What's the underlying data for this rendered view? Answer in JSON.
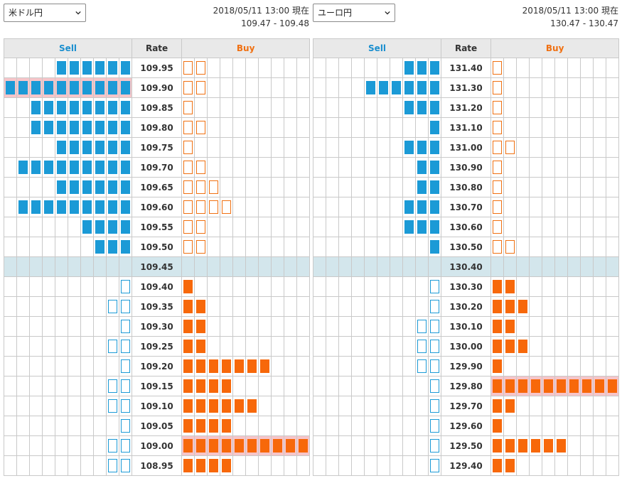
{
  "panels": [
    {
      "pair": "米ドル円",
      "timestamp": "2018/05/11 13:00 現在",
      "quote": "109.47 - 109.48",
      "headers": {
        "sell": "Sell",
        "rate": "Rate",
        "buy": "Buy"
      },
      "current_rate": "109.45",
      "rows": [
        {
          "rate": "109.95",
          "sell": 6,
          "sell_type": "filled",
          "buy": 2,
          "buy_type": "outline"
        },
        {
          "rate": "109.90",
          "sell": 10,
          "sell_type": "filled",
          "buy": 2,
          "buy_type": "outline",
          "highlight": "sell"
        },
        {
          "rate": "109.85",
          "sell": 8,
          "sell_type": "filled",
          "buy": 1,
          "buy_type": "outline"
        },
        {
          "rate": "109.80",
          "sell": 8,
          "sell_type": "filled",
          "buy": 2,
          "buy_type": "outline"
        },
        {
          "rate": "109.75",
          "sell": 6,
          "sell_type": "filled",
          "buy": 1,
          "buy_type": "outline"
        },
        {
          "rate": "109.70",
          "sell": 9,
          "sell_type": "filled",
          "buy": 2,
          "buy_type": "outline"
        },
        {
          "rate": "109.65",
          "sell": 6,
          "sell_type": "filled",
          "buy": 3,
          "buy_type": "outline"
        },
        {
          "rate": "109.60",
          "sell": 9,
          "sell_type": "filled",
          "buy": 4,
          "buy_type": "outline"
        },
        {
          "rate": "109.55",
          "sell": 4,
          "sell_type": "filled",
          "buy": 2,
          "buy_type": "outline"
        },
        {
          "rate": "109.50",
          "sell": 3,
          "sell_type": "filled",
          "buy": 2,
          "buy_type": "outline"
        },
        {
          "rate": "109.45",
          "sell": 0,
          "sell_type": "filled",
          "buy": 0,
          "buy_type": "filled",
          "current": true
        },
        {
          "rate": "109.40",
          "sell": 1,
          "sell_type": "outline",
          "buy": 1,
          "buy_type": "filled"
        },
        {
          "rate": "109.35",
          "sell": 2,
          "sell_type": "outline",
          "buy": 2,
          "buy_type": "filled"
        },
        {
          "rate": "109.30",
          "sell": 1,
          "sell_type": "outline",
          "buy": 2,
          "buy_type": "filled"
        },
        {
          "rate": "109.25",
          "sell": 2,
          "sell_type": "outline",
          "buy": 2,
          "buy_type": "filled"
        },
        {
          "rate": "109.20",
          "sell": 1,
          "sell_type": "outline",
          "buy": 7,
          "buy_type": "filled"
        },
        {
          "rate": "109.15",
          "sell": 2,
          "sell_type": "outline",
          "buy": 4,
          "buy_type": "filled"
        },
        {
          "rate": "109.10",
          "sell": 2,
          "sell_type": "outline",
          "buy": 6,
          "buy_type": "filled"
        },
        {
          "rate": "109.05",
          "sell": 1,
          "sell_type": "outline",
          "buy": 4,
          "buy_type": "filled"
        },
        {
          "rate": "109.00",
          "sell": 2,
          "sell_type": "outline",
          "buy": 10,
          "buy_type": "filled",
          "highlight": "buy"
        },
        {
          "rate": "108.95",
          "sell": 2,
          "sell_type": "outline",
          "buy": 4,
          "buy_type": "filled"
        }
      ]
    },
    {
      "pair": "ユーロ円",
      "timestamp": "2018/05/11 13:00 現在",
      "quote": "130.47 - 130.47",
      "headers": {
        "sell": "Sell",
        "rate": "Rate",
        "buy": "Buy"
      },
      "current_rate": "130.40",
      "rows": [
        {
          "rate": "131.40",
          "sell": 3,
          "sell_type": "filled",
          "buy": 1,
          "buy_type": "outline"
        },
        {
          "rate": "131.30",
          "sell": 6,
          "sell_type": "filled",
          "buy": 1,
          "buy_type": "outline"
        },
        {
          "rate": "131.20",
          "sell": 3,
          "sell_type": "filled",
          "buy": 1,
          "buy_type": "outline"
        },
        {
          "rate": "131.10",
          "sell": 1,
          "sell_type": "filled",
          "buy": 1,
          "buy_type": "outline"
        },
        {
          "rate": "131.00",
          "sell": 3,
          "sell_type": "filled",
          "buy": 2,
          "buy_type": "outline"
        },
        {
          "rate": "130.90",
          "sell": 2,
          "sell_type": "filled",
          "buy": 1,
          "buy_type": "outline"
        },
        {
          "rate": "130.80",
          "sell": 2,
          "sell_type": "filled",
          "buy": 1,
          "buy_type": "outline"
        },
        {
          "rate": "130.70",
          "sell": 3,
          "sell_type": "filled",
          "buy": 1,
          "buy_type": "outline"
        },
        {
          "rate": "130.60",
          "sell": 3,
          "sell_type": "filled",
          "buy": 1,
          "buy_type": "outline"
        },
        {
          "rate": "130.50",
          "sell": 1,
          "sell_type": "filled",
          "buy": 2,
          "buy_type": "outline"
        },
        {
          "rate": "130.40",
          "sell": 0,
          "sell_type": "filled",
          "buy": 0,
          "buy_type": "filled",
          "current": true
        },
        {
          "rate": "130.30",
          "sell": 1,
          "sell_type": "outline",
          "buy": 2,
          "buy_type": "filled"
        },
        {
          "rate": "130.20",
          "sell": 1,
          "sell_type": "outline",
          "buy": 3,
          "buy_type": "filled"
        },
        {
          "rate": "130.10",
          "sell": 2,
          "sell_type": "outline",
          "buy": 2,
          "buy_type": "filled"
        },
        {
          "rate": "130.00",
          "sell": 2,
          "sell_type": "outline",
          "buy": 3,
          "buy_type": "filled"
        },
        {
          "rate": "129.90",
          "sell": 2,
          "sell_type": "outline",
          "buy": 1,
          "buy_type": "filled"
        },
        {
          "rate": "129.80",
          "sell": 1,
          "sell_type": "outline",
          "buy": 10,
          "buy_type": "filled",
          "highlight": "buy"
        },
        {
          "rate": "129.70",
          "sell": 1,
          "sell_type": "outline",
          "buy": 2,
          "buy_type": "filled"
        },
        {
          "rate": "129.60",
          "sell": 1,
          "sell_type": "outline",
          "buy": 1,
          "buy_type": "filled"
        },
        {
          "rate": "129.50",
          "sell": 1,
          "sell_type": "outline",
          "buy": 6,
          "buy_type": "filled"
        },
        {
          "rate": "129.40",
          "sell": 1,
          "sell_type": "outline",
          "buy": 2,
          "buy_type": "filled"
        }
      ]
    }
  ],
  "colors": {
    "sell": "#1b9ad6",
    "buy": "#f7680a",
    "current_row": "#d3e6ec",
    "highlight": "#f6c5c9",
    "header_bg": "#e9e9e9"
  },
  "icons": {
    "select_toggle": "chevron-down-icon"
  }
}
